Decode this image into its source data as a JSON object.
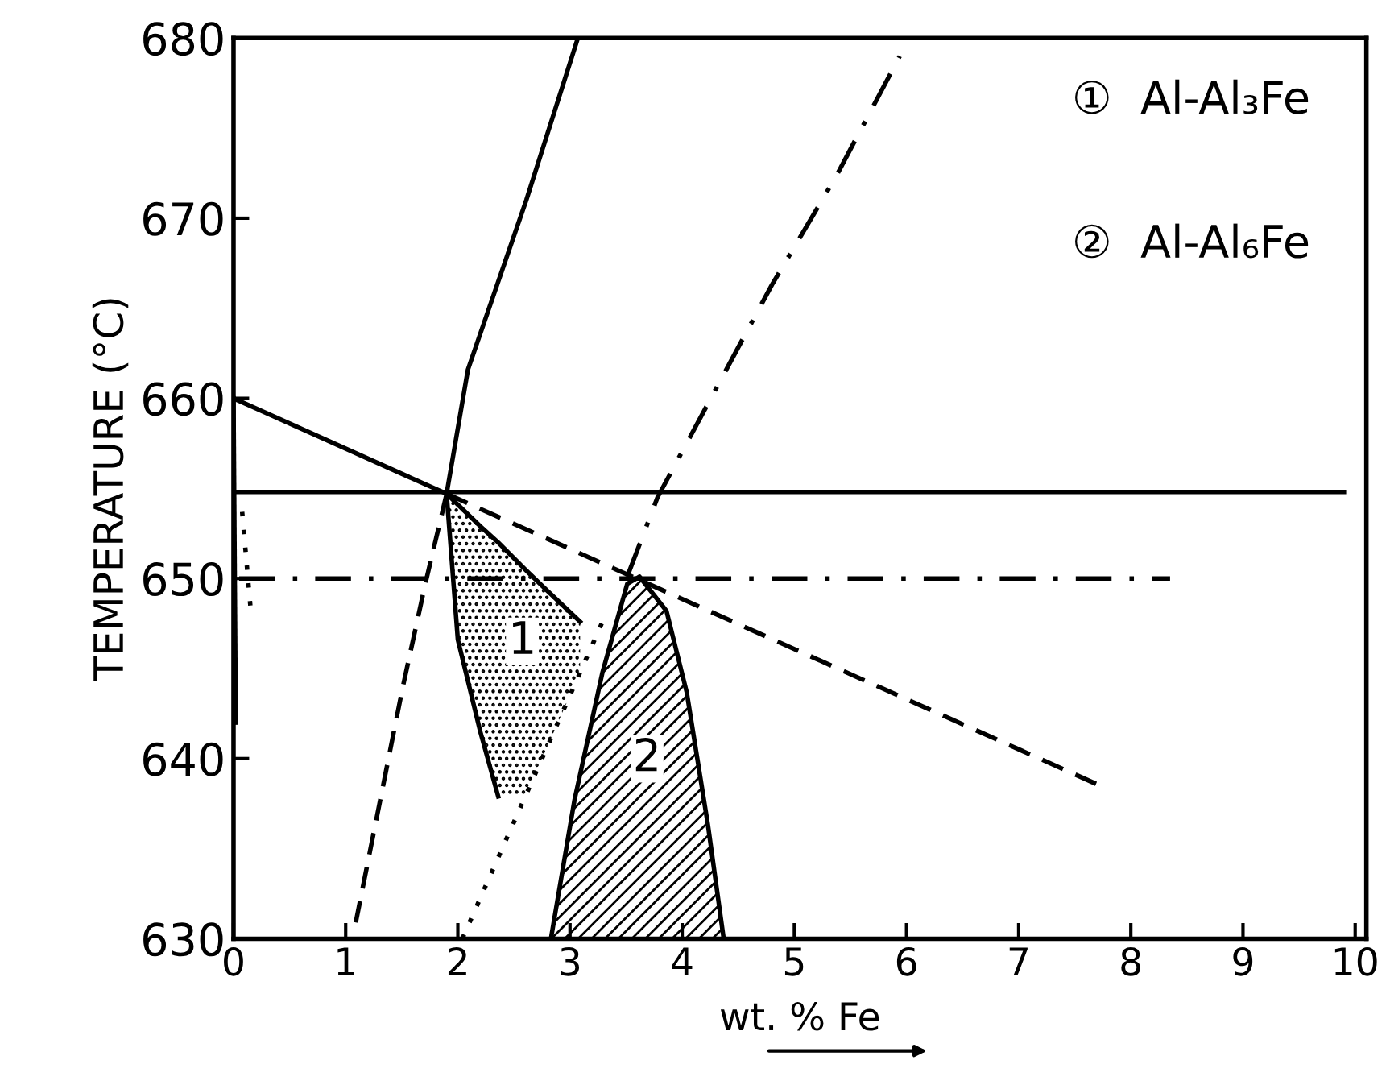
{
  "chart_data": {
    "type": "line",
    "xlabel": "wt. % Fe",
    "ylabel": "TEMPERATURE (°C)",
    "xlim": [
      0,
      10.1
    ],
    "ylim": [
      630,
      680
    ],
    "xticks": [
      0,
      1,
      2,
      3,
      4,
      5,
      6,
      7,
      8,
      9,
      10
    ],
    "yticks": [
      630,
      640,
      650,
      660,
      670,
      680
    ],
    "grid": false,
    "legend": false,
    "marker": "none",
    "series": [
      {
        "color": "#000000",
        "line_style": "solid",
        "x": [
          2.36,
          2.2,
          2.0,
          1.9,
          2.09,
          2.61,
          3.07
        ],
        "values": [
          637.9,
          641.5,
          646.6,
          654.7,
          661.6,
          671.0,
          680.0
        ]
      },
      {
        "color": "#000000",
        "line_style": "solid",
        "x": [
          0.03,
          9.9
        ],
        "values": [
          654.8,
          654.8
        ]
      },
      {
        "color": "#000000",
        "line_style": "dashdot",
        "x": [
          0.05,
          8.35
        ],
        "values": [
          650.0,
          650.0
        ]
      },
      {
        "color": "#000000",
        "line_style": "dashdot",
        "x": [
          3.51,
          3.78,
          4.8,
          5.37,
          5.94
        ],
        "values": [
          650.1,
          654.5,
          666.3,
          672.3,
          679.0
        ]
      },
      {
        "color": "#000000",
        "line_style": "dotted",
        "x": [
          2.04,
          2.8,
          3.29
        ],
        "values": [
          630.0,
          640.7,
          647.6
        ]
      },
      {
        "color": "#000000",
        "line_style": "dashed",
        "x": [
          1.09,
          1.51,
          1.71,
          1.9
        ],
        "values": [
          630.9,
          644.0,
          649.7,
          654.7
        ]
      },
      {
        "color": "#000000",
        "line_style": "dashed",
        "x": [
          1.9,
          7.69
        ],
        "values": [
          654.7,
          638.6
        ]
      },
      {
        "color": "#000000",
        "line_style": "solid",
        "x": [
          0,
          1.9,
          2.0,
          2.2,
          2.36,
          2.6,
          2.8,
          3.09
        ],
        "values": [
          660.0,
          654.7,
          654.1,
          652.9,
          652.0,
          650.5,
          649.3,
          647.6
        ],
        "lower": [
          660.0,
          654.7,
          646.6,
          641.5,
          637.9,
          637.9,
          640.7,
          644.8
        ],
        "upper": [
          660.0,
          654.7,
          654.1,
          652.9,
          652.0,
          650.5,
          649.3,
          647.6
        ]
      },
      {
        "color": "#000000",
        "line_style": "solid",
        "x": [
          2.83,
          3.04,
          3.29,
          3.51,
          3.62,
          3.86,
          4.04,
          4.23,
          4.37
        ],
        "values": [
          630.0,
          637.7,
          644.8,
          649.7,
          650.1,
          648.2,
          643.7,
          636.3,
          630.0
        ],
        "lower": [
          630,
          630,
          630,
          630,
          630,
          630,
          630,
          630,
          630
        ],
        "upper": [
          630.0,
          637.7,
          644.8,
          649.7,
          650.1,
          648.2,
          643.7,
          636.3,
          630.0
        ]
      },
      {
        "color": "#000000",
        "line_style": "solid",
        "x": [
          0.0,
          0.02
        ],
        "values": [
          660.0,
          642.0
        ]
      },
      {
        "color": "#000000",
        "line_style": "dotted",
        "x": [
          0.15,
          0.07
        ],
        "values": [
          648.5,
          654.2
        ]
      }
    ],
    "annotations": [
      "1",
      "2",
      "①  Al-Al₃Fe",
      "②  Al-Al₆Fe"
    ]
  }
}
